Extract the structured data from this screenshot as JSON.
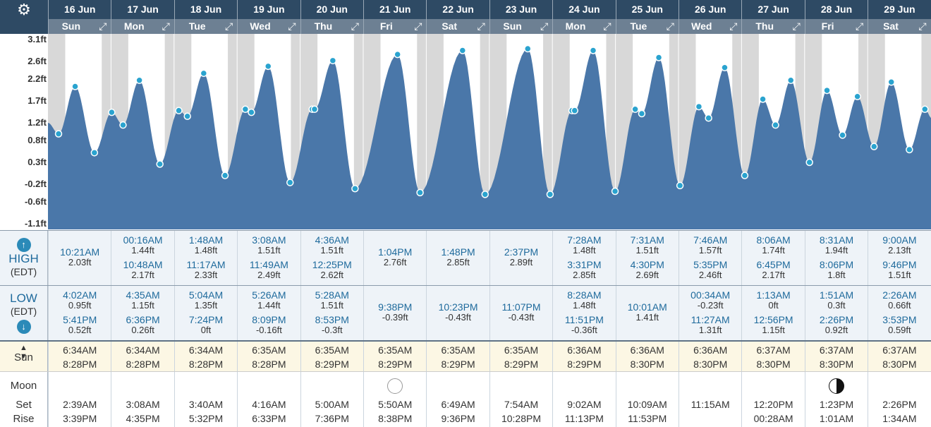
{
  "header": {
    "settings_icon": "gear-icon"
  },
  "days": [
    {
      "date": "16 Jun",
      "day": "Sun"
    },
    {
      "date": "17 Jun",
      "day": "Mon"
    },
    {
      "date": "18 Jun",
      "day": "Tue"
    },
    {
      "date": "19 Jun",
      "day": "Wed"
    },
    {
      "date": "20 Jun",
      "day": "Thu"
    },
    {
      "date": "21 Jun",
      "day": "Fri"
    },
    {
      "date": "22 Jun",
      "day": "Sat"
    },
    {
      "date": "23 Jun",
      "day": "Sun"
    },
    {
      "date": "24 Jun",
      "day": "Mon"
    },
    {
      "date": "25 Jun",
      "day": "Tue"
    },
    {
      "date": "26 Jun",
      "day": "Wed"
    },
    {
      "date": "27 Jun",
      "day": "Thu"
    },
    {
      "date": "28 Jun",
      "day": "Fri"
    },
    {
      "date": "29 Jun",
      "day": "Sat"
    }
  ],
  "chart_data": {
    "type": "area",
    "color": "#4a77a9",
    "night_shading": "#d8d8d8",
    "y_ticks": [
      "3.1ft",
      "2.6ft",
      "2.2ft",
      "1.7ft",
      "1.2ft",
      "0.8ft",
      "0.3ft",
      "-0.2ft",
      "-0.6ft",
      "-1.1ft"
    ],
    "ylim": [
      -1.1,
      3.1
    ],
    "points": [
      {
        "day": 0,
        "h": 0.0,
        "v": 1.2,
        "m": false
      },
      {
        "day": 0,
        "h": 4.03,
        "v": 0.95,
        "m": true
      },
      {
        "day": 0,
        "h": 10.35,
        "v": 2.03,
        "m": true
      },
      {
        "day": 0,
        "h": 17.68,
        "v": 0.52,
        "m": true
      },
      {
        "day": 1,
        "h": 0.27,
        "v": 1.44,
        "m": true
      },
      {
        "day": 1,
        "h": 4.58,
        "v": 1.15,
        "m": true
      },
      {
        "day": 1,
        "h": 10.8,
        "v": 2.17,
        "m": true
      },
      {
        "day": 1,
        "h": 18.6,
        "v": 0.26,
        "m": true
      },
      {
        "day": 2,
        "h": 1.8,
        "v": 1.48,
        "m": true
      },
      {
        "day": 2,
        "h": 5.07,
        "v": 1.35,
        "m": true
      },
      {
        "day": 2,
        "h": 11.28,
        "v": 2.33,
        "m": true
      },
      {
        "day": 2,
        "h": 19.4,
        "v": 0.0,
        "m": true
      },
      {
        "day": 3,
        "h": 3.13,
        "v": 1.51,
        "m": true
      },
      {
        "day": 3,
        "h": 5.43,
        "v": 1.44,
        "m": true
      },
      {
        "day": 3,
        "h": 11.82,
        "v": 2.49,
        "m": true
      },
      {
        "day": 3,
        "h": 20.15,
        "v": -0.16,
        "m": true
      },
      {
        "day": 4,
        "h": 4.6,
        "v": 1.51,
        "m": true
      },
      {
        "day": 4,
        "h": 5.47,
        "v": 1.51,
        "m": true
      },
      {
        "day": 4,
        "h": 12.42,
        "v": 2.62,
        "m": true
      },
      {
        "day": 4,
        "h": 20.88,
        "v": -0.3,
        "m": true
      },
      {
        "day": 5,
        "h": 13.07,
        "v": 2.76,
        "m": true
      },
      {
        "day": 5,
        "h": 21.63,
        "v": -0.39,
        "m": true
      },
      {
        "day": 6,
        "h": 13.8,
        "v": 2.85,
        "m": true
      },
      {
        "day": 6,
        "h": 22.38,
        "v": -0.43,
        "m": true
      },
      {
        "day": 7,
        "h": 14.62,
        "v": 2.89,
        "m": true
      },
      {
        "day": 7,
        "h": 23.12,
        "v": -0.43,
        "m": true
      },
      {
        "day": 8,
        "h": 7.47,
        "v": 1.48,
        "m": true
      },
      {
        "day": 8,
        "h": 8.47,
        "v": 1.48,
        "m": true
      },
      {
        "day": 8,
        "h": 15.52,
        "v": 2.85,
        "m": true
      },
      {
        "day": 8,
        "h": 23.85,
        "v": -0.36,
        "m": true
      },
      {
        "day": 9,
        "h": 7.52,
        "v": 1.51,
        "m": true
      },
      {
        "day": 9,
        "h": 10.02,
        "v": 1.41,
        "m": true
      },
      {
        "day": 9,
        "h": 16.5,
        "v": 2.69,
        "m": true
      },
      {
        "day": 10,
        "h": 0.57,
        "v": -0.23,
        "m": true
      },
      {
        "day": 10,
        "h": 7.77,
        "v": 1.57,
        "m": true
      },
      {
        "day": 10,
        "h": 11.45,
        "v": 1.31,
        "m": true
      },
      {
        "day": 10,
        "h": 17.58,
        "v": 2.46,
        "m": true
      },
      {
        "day": 11,
        "h": 1.22,
        "v": 0.0,
        "m": true
      },
      {
        "day": 11,
        "h": 8.1,
        "v": 1.74,
        "m": true
      },
      {
        "day": 11,
        "h": 12.93,
        "v": 1.15,
        "m": true
      },
      {
        "day": 11,
        "h": 18.75,
        "v": 2.17,
        "m": true
      },
      {
        "day": 12,
        "h": 1.85,
        "v": 0.3,
        "m": true
      },
      {
        "day": 12,
        "h": 8.52,
        "v": 1.94,
        "m": true
      },
      {
        "day": 12,
        "h": 14.43,
        "v": 0.92,
        "m": true
      },
      {
        "day": 12,
        "h": 20.1,
        "v": 1.8,
        "m": true
      },
      {
        "day": 13,
        "h": 2.43,
        "v": 0.66,
        "m": true
      },
      {
        "day": 13,
        "h": 9.0,
        "v": 2.13,
        "m": true
      },
      {
        "day": 13,
        "h": 15.88,
        "v": 0.59,
        "m": true
      },
      {
        "day": 13,
        "h": 21.77,
        "v": 1.51,
        "m": true
      },
      {
        "day": 14,
        "h": 0.5,
        "v": 1.3,
        "m": false
      }
    ],
    "sunrise_h": 6.58,
    "sunset_h": 20.47
  },
  "high": {
    "label": "HIGH",
    "tz": "(EDT)",
    "icon": "arrow-up-icon",
    "cells": [
      {
        "a_t": "",
        "a_v": "",
        "b_t": "10:21AM",
        "b_v": "2.03ft",
        "single": true
      },
      {
        "a_t": "00:16AM",
        "a_v": "1.44ft",
        "b_t": "10:48AM",
        "b_v": "2.17ft"
      },
      {
        "a_t": "1:48AM",
        "a_v": "1.48ft",
        "b_t": "11:17AM",
        "b_v": "2.33ft"
      },
      {
        "a_t": "3:08AM",
        "a_v": "1.51ft",
        "b_t": "11:49AM",
        "b_v": "2.49ft"
      },
      {
        "a_t": "4:36AM",
        "a_v": "1.51ft",
        "b_t": "12:25PM",
        "b_v": "2.62ft"
      },
      {
        "a_t": "",
        "a_v": "",
        "b_t": "1:04PM",
        "b_v": "2.76ft",
        "single": true
      },
      {
        "a_t": "",
        "a_v": "",
        "b_t": "1:48PM",
        "b_v": "2.85ft",
        "single": true
      },
      {
        "a_t": "",
        "a_v": "",
        "b_t": "2:37PM",
        "b_v": "2.89ft",
        "single": true
      },
      {
        "a_t": "7:28AM",
        "a_v": "1.48ft",
        "b_t": "3:31PM",
        "b_v": "2.85ft"
      },
      {
        "a_t": "7:31AM",
        "a_v": "1.51ft",
        "b_t": "4:30PM",
        "b_v": "2.69ft"
      },
      {
        "a_t": "7:46AM",
        "a_v": "1.57ft",
        "b_t": "5:35PM",
        "b_v": "2.46ft"
      },
      {
        "a_t": "8:06AM",
        "a_v": "1.74ft",
        "b_t": "6:45PM",
        "b_v": "2.17ft"
      },
      {
        "a_t": "8:31AM",
        "a_v": "1.94ft",
        "b_t": "8:06PM",
        "b_v": "1.8ft"
      },
      {
        "a_t": "9:00AM",
        "a_v": "2.13ft",
        "b_t": "9:46PM",
        "b_v": "1.51ft"
      }
    ]
  },
  "low": {
    "label": "LOW",
    "tz": "(EDT)",
    "icon": "arrow-down-icon",
    "cells": [
      {
        "a_t": "4:02AM",
        "a_v": "0.95ft",
        "b_t": "5:41PM",
        "b_v": "0.52ft"
      },
      {
        "a_t": "4:35AM",
        "a_v": "1.15ft",
        "b_t": "6:36PM",
        "b_v": "0.26ft"
      },
      {
        "a_t": "5:04AM",
        "a_v": "1.35ft",
        "b_t": "7:24PM",
        "b_v": "0ft"
      },
      {
        "a_t": "5:26AM",
        "a_v": "1.44ft",
        "b_t": "8:09PM",
        "b_v": "-0.16ft"
      },
      {
        "a_t": "5:28AM",
        "a_v": "1.51ft",
        "b_t": "8:53PM",
        "b_v": "-0.3ft"
      },
      {
        "a_t": "",
        "a_v": "",
        "b_t": "9:38PM",
        "b_v": "-0.39ft",
        "single": true
      },
      {
        "a_t": "",
        "a_v": "",
        "b_t": "10:23PM",
        "b_v": "-0.43ft",
        "single": true
      },
      {
        "a_t": "",
        "a_v": "",
        "b_t": "11:07PM",
        "b_v": "-0.43ft",
        "single": true
      },
      {
        "a_t": "8:28AM",
        "a_v": "1.48ft",
        "b_t": "11:51PM",
        "b_v": "-0.36ft"
      },
      {
        "a_t": "",
        "a_v": "",
        "b_t": "10:01AM",
        "b_v": "1.41ft",
        "single": true
      },
      {
        "a_t": "00:34AM",
        "a_v": "-0.23ft",
        "b_t": "11:27AM",
        "b_v": "1.31ft"
      },
      {
        "a_t": "1:13AM",
        "a_v": "0ft",
        "b_t": "12:56PM",
        "b_v": "1.15ft"
      },
      {
        "a_t": "1:51AM",
        "a_v": "0.3ft",
        "b_t": "2:26PM",
        "b_v": "0.92ft"
      },
      {
        "a_t": "2:26AM",
        "a_v": "0.66ft",
        "b_t": "3:53PM",
        "b_v": "0.59ft"
      }
    ]
  },
  "sun": {
    "label": "Sun",
    "icon": "sun-updown-icon",
    "cells": [
      {
        "rise": "6:34AM",
        "set": "8:28PM"
      },
      {
        "rise": "6:34AM",
        "set": "8:28PM"
      },
      {
        "rise": "6:34AM",
        "set": "8:28PM"
      },
      {
        "rise": "6:35AM",
        "set": "8:28PM"
      },
      {
        "rise": "6:35AM",
        "set": "8:29PM"
      },
      {
        "rise": "6:35AM",
        "set": "8:29PM"
      },
      {
        "rise": "6:35AM",
        "set": "8:29PM"
      },
      {
        "rise": "6:35AM",
        "set": "8:29PM"
      },
      {
        "rise": "6:36AM",
        "set": "8:29PM"
      },
      {
        "rise": "6:36AM",
        "set": "8:30PM"
      },
      {
        "rise": "6:36AM",
        "set": "8:30PM"
      },
      {
        "rise": "6:37AM",
        "set": "8:30PM"
      },
      {
        "rise": "6:37AM",
        "set": "8:30PM"
      },
      {
        "rise": "6:37AM",
        "set": "8:30PM"
      }
    ]
  },
  "moon": {
    "label": "Moon",
    "set_label": "Set",
    "rise_label": "Rise",
    "cells": [
      {
        "set": "2:39AM",
        "rise": "3:39PM",
        "phase": ""
      },
      {
        "set": "3:08AM",
        "rise": "4:35PM",
        "phase": ""
      },
      {
        "set": "3:40AM",
        "rise": "5:32PM",
        "phase": ""
      },
      {
        "set": "4:16AM",
        "rise": "6:33PM",
        "phase": ""
      },
      {
        "set": "5:00AM",
        "rise": "7:36PM",
        "phase": ""
      },
      {
        "set": "5:50AM",
        "rise": "8:38PM",
        "phase": "full-moon-icon"
      },
      {
        "set": "6:49AM",
        "rise": "9:36PM",
        "phase": ""
      },
      {
        "set": "7:54AM",
        "rise": "10:28PM",
        "phase": ""
      },
      {
        "set": "9:02AM",
        "rise": "11:13PM",
        "phase": ""
      },
      {
        "set": "10:09AM",
        "rise": "11:53PM",
        "phase": ""
      },
      {
        "set": "11:15AM",
        "rise": "",
        "phase": ""
      },
      {
        "set": "12:20PM",
        "rise": "00:28AM",
        "phase": ""
      },
      {
        "set": "1:23PM",
        "rise": "1:01AM",
        "phase": "last-quarter-moon-icon"
      },
      {
        "set": "2:26PM",
        "rise": "1:34AM",
        "phase": ""
      }
    ]
  }
}
